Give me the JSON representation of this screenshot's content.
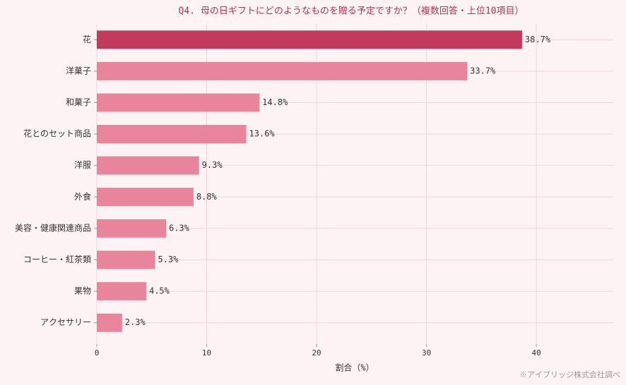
{
  "chart_data": {
    "type": "barh",
    "title": "Q4. 母の日ギフトにどのようなものを贈る予定ですか？（複数回答・上位10項目）",
    "categories": [
      "花",
      "洋菓子",
      "和菓子",
      "花とのセット商品",
      "洋服",
      "外食",
      "美容・健康関連商品",
      "コーヒー・紅茶類",
      "果物",
      "アクセサリー"
    ],
    "values": [
      38.7,
      33.7,
      14.8,
      13.6,
      9.3,
      8.8,
      6.3,
      5.3,
      4.5,
      2.3
    ],
    "value_labels": [
      "38.7%",
      "33.7%",
      "14.8%",
      "13.6%",
      "9.3%",
      "8.8%",
      "6.3%",
      "5.3%",
      "4.5%",
      "2.3%"
    ],
    "colors": [
      "#c23b5e",
      "#e8849c",
      "#e8849c",
      "#e8849c",
      "#e8849c",
      "#e8849c",
      "#e8849c",
      "#e8849c",
      "#e8849c",
      "#e8849c"
    ],
    "xlabel": "割合（%）",
    "xlim": [
      0,
      47
    ],
    "xticks": [
      0,
      10,
      20,
      30,
      40
    ],
    "grid": true,
    "note": "※アイブリッジ株式会社調べ"
  }
}
